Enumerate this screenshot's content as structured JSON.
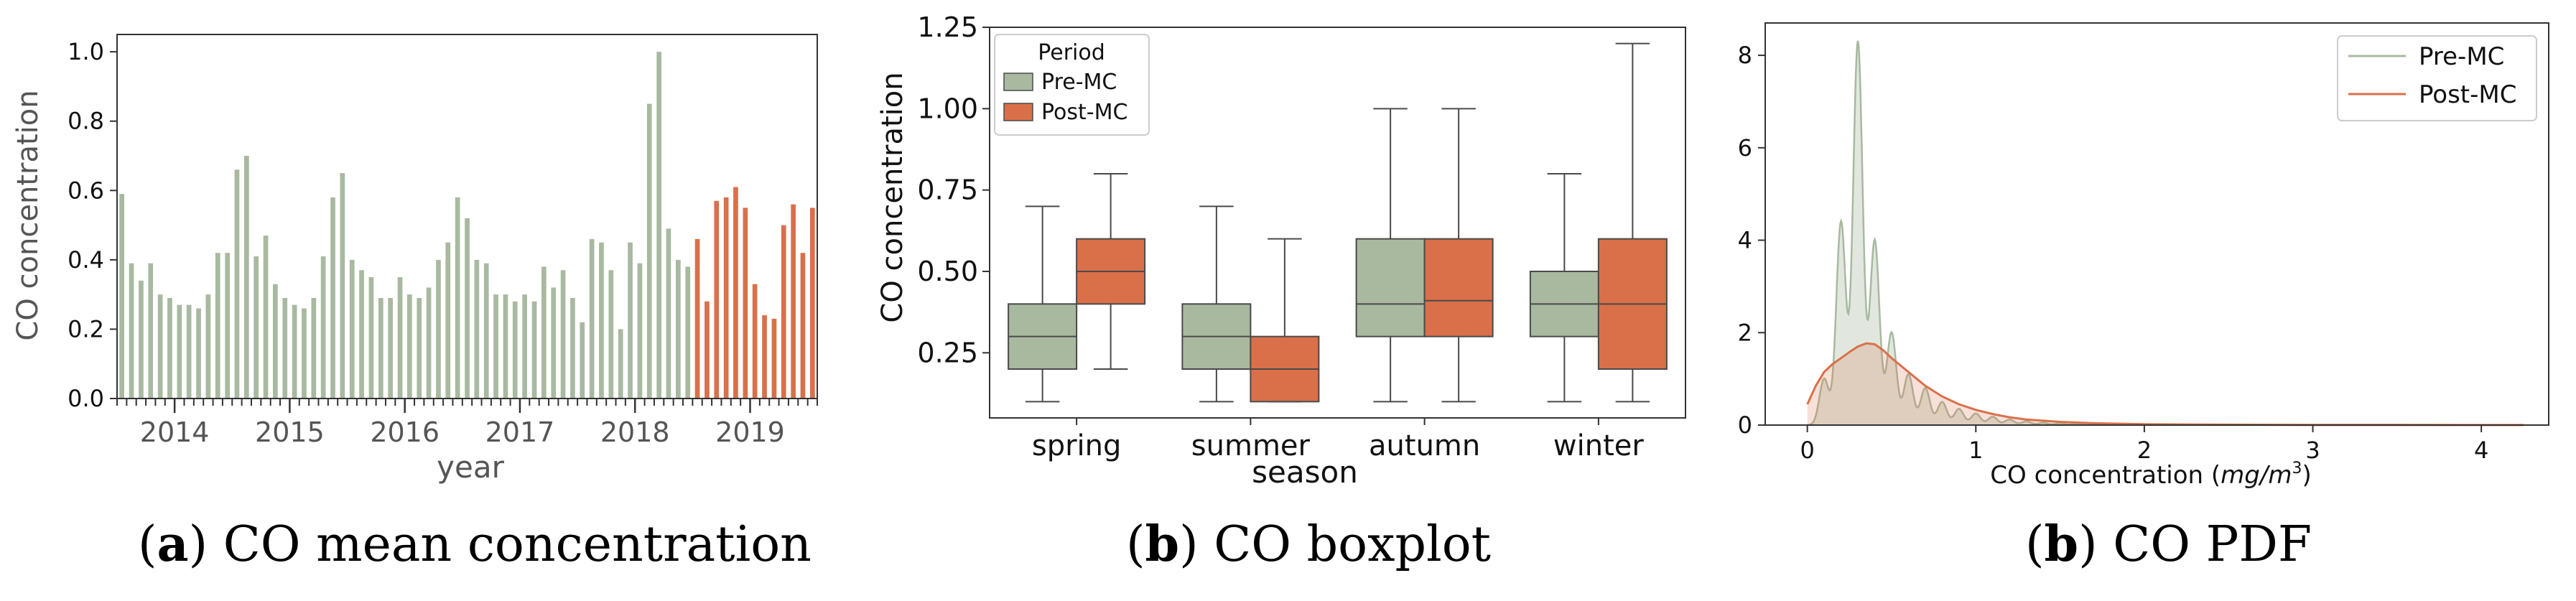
{
  "colors": {
    "pre": "#a8b9a0",
    "post": "#d9704a",
    "axis": "#333333",
    "text": "#111111",
    "muted": "#555555",
    "box_edge": "#4a4a4a"
  },
  "captions": [
    {
      "label": "a",
      "text": "CO mean concentration"
    },
    {
      "label": "b",
      "text": "CO boxplot"
    },
    {
      "label": "b",
      "text": "CO PDF"
    }
  ],
  "chart_data": [
    {
      "type": "bar",
      "title": "",
      "xlabel": "year",
      "ylabel": "CO concentration",
      "ylim": [
        0,
        1.05
      ],
      "yticks": [
        0.0,
        0.2,
        0.4,
        0.6,
        0.8,
        1.0
      ],
      "ytick_labels": [
        "0.0",
        "0.2",
        "0.4",
        "0.6",
        "0.8",
        "1.0"
      ],
      "year_labels": [
        "2014",
        "2015",
        "2016",
        "2017",
        "2018",
        "2019"
      ],
      "first_month": "2013-07",
      "split_index": 60,
      "series": [
        {
          "name": "Pre-MC",
          "values": [
            0.59,
            0.39,
            0.34,
            0.39,
            0.3,
            0.29,
            0.27,
            0.27,
            0.26,
            0.3,
            0.42,
            0.42,
            0.66,
            0.7,
            0.41,
            0.47,
            0.33,
            0.29,
            0.27,
            0.26,
            0.29,
            0.41,
            0.58,
            0.65,
            0.4,
            0.37,
            0.35,
            0.29,
            0.29,
            0.35,
            0.3,
            0.29,
            0.32,
            0.4,
            0.45,
            0.58,
            0.52,
            0.4,
            0.39,
            0.3,
            0.3,
            0.28,
            0.3,
            0.28,
            0.38,
            0.32,
            0.37,
            0.29,
            0.22,
            0.46,
            0.45,
            0.37,
            0.2,
            0.45,
            0.39,
            0.85,
            1.0,
            0.49,
            0.4,
            0.38
          ]
        },
        {
          "name": "Post-MC",
          "values": [
            0.46,
            0.28,
            0.57,
            0.58,
            0.61,
            0.55,
            0.33,
            0.24,
            0.23,
            0.5,
            0.56,
            0.42,
            0.55
          ]
        }
      ]
    },
    {
      "type": "box",
      "title": "",
      "xlabel": "season",
      "ylabel": "CO concentration",
      "ylim": [
        0.05,
        1.25
      ],
      "yticks": [
        0.25,
        0.5,
        0.75,
        1.0,
        1.25
      ],
      "ytick_labels": [
        "0.25",
        "0.50",
        "0.75",
        "1.00",
        "1.25"
      ],
      "categories": [
        "spring",
        "summer",
        "autumn",
        "winter"
      ],
      "legend": {
        "title": "Period",
        "entries": [
          "Pre-MC",
          "Post-MC"
        ],
        "position": "top-left"
      },
      "series": [
        {
          "name": "Pre-MC",
          "boxes": [
            {
              "whislo": 0.1,
              "q1": 0.2,
              "med": 0.3,
              "q3": 0.4,
              "whishi": 0.7
            },
            {
              "whislo": 0.1,
              "q1": 0.2,
              "med": 0.3,
              "q3": 0.4,
              "whishi": 0.7
            },
            {
              "whislo": 0.1,
              "q1": 0.3,
              "med": 0.4,
              "q3": 0.6,
              "whishi": 1.0
            },
            {
              "whislo": 0.1,
              "q1": 0.3,
              "med": 0.4,
              "q3": 0.5,
              "whishi": 0.8
            }
          ]
        },
        {
          "name": "Post-MC",
          "boxes": [
            {
              "whislo": 0.2,
              "q1": 0.4,
              "med": 0.5,
              "q3": 0.6,
              "whishi": 0.8
            },
            {
              "whislo": 0.1,
              "q1": 0.1,
              "med": 0.2,
              "q3": 0.3,
              "whishi": 0.6
            },
            {
              "whislo": 0.1,
              "q1": 0.3,
              "med": 0.41,
              "q3": 0.6,
              "whishi": 1.0
            },
            {
              "whislo": 0.1,
              "q1": 0.2,
              "med": 0.4,
              "q3": 0.6,
              "whishi": 1.2
            }
          ]
        }
      ]
    },
    {
      "type": "area",
      "title": "",
      "xlabel": "CO concentration (mg/m³)",
      "xlabel_plain": "CO concentration (",
      "xlabel_unit": "mg/m",
      "xlabel_sup": "3",
      "xlabel_close": ")",
      "ylabel": "",
      "xlim": [
        -0.25,
        4.4
      ],
      "ylim": [
        0,
        8.7
      ],
      "xticks": [
        0,
        1,
        2,
        3,
        4
      ],
      "xtick_labels": [
        "0",
        "1",
        "2",
        "3",
        "4"
      ],
      "yticks": [
        0,
        2,
        4,
        6,
        8
      ],
      "ytick_labels": [
        "0",
        "2",
        "4",
        "6",
        "8"
      ],
      "legend": {
        "entries": [
          "Pre-MC",
          "Post-MC"
        ],
        "position": "top-right"
      },
      "series": [
        {
          "name": "Pre-MC",
          "peaks": [
            [
              0.1,
              1.0
            ],
            [
              0.2,
              4.4
            ],
            [
              0.3,
              8.3
            ],
            [
              0.4,
              4.0
            ],
            [
              0.5,
              2.0
            ],
            [
              0.6,
              1.1
            ],
            [
              0.7,
              0.8
            ],
            [
              0.8,
              0.5
            ],
            [
              0.9,
              0.35
            ],
            [
              1.0,
              0.25
            ],
            [
              1.1,
              0.18
            ],
            [
              1.2,
              0.12
            ],
            [
              1.3,
              0.08
            ],
            [
              1.4,
              0.05
            ],
            [
              1.5,
              0.04
            ],
            [
              1.6,
              0.03
            ],
            [
              1.7,
              0.02
            ],
            [
              1.8,
              0.015
            ],
            [
              1.9,
              0.01
            ],
            [
              2.0,
              0.008
            ]
          ],
          "peak_width": 0.028,
          "x_end": 4.25
        },
        {
          "name": "Post-MC",
          "x": [
            0.0,
            0.05,
            0.1,
            0.15,
            0.2,
            0.25,
            0.3,
            0.35,
            0.4,
            0.45,
            0.5,
            0.6,
            0.7,
            0.8,
            0.9,
            1.0,
            1.1,
            1.2,
            1.3,
            1.5,
            1.7,
            2.0,
            2.5,
            3.0,
            3.5,
            4.0,
            4.25
          ],
          "y": [
            0.45,
            0.85,
            1.15,
            1.32,
            1.45,
            1.58,
            1.7,
            1.77,
            1.75,
            1.62,
            1.45,
            1.15,
            0.85,
            0.62,
            0.45,
            0.33,
            0.24,
            0.17,
            0.12,
            0.07,
            0.04,
            0.02,
            0.01,
            0.005,
            0.003,
            0.002,
            0.001
          ]
        }
      ]
    }
  ]
}
